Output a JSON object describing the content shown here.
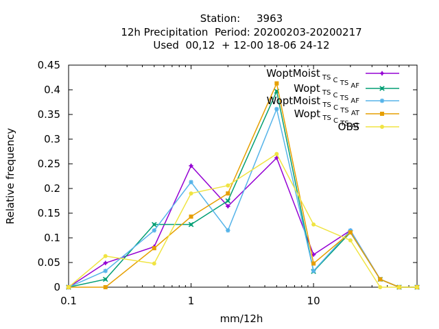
{
  "chart_data": {
    "type": "line",
    "title_lines": [
      "Station:     3963",
      "12h Precipitation  Period: 20200203-20200217",
      "Used  00,12  + 12-00 18-06 24-12"
    ],
    "xlabel": "mm/12h",
    "ylabel": "Relative frequency",
    "xscale": "log",
    "xlim": [
      0.1,
      70
    ],
    "ylim": [
      0,
      0.45
    ],
    "xticks": [
      {
        "v": 0.1,
        "label": "0.1"
      },
      {
        "v": 1,
        "label": "1"
      },
      {
        "v": 10,
        "label": "10"
      }
    ],
    "yticks": [
      {
        "v": 0,
        "label": "0"
      },
      {
        "v": 0.05,
        "label": "0.05"
      },
      {
        "v": 0.1,
        "label": "0.1"
      },
      {
        "v": 0.15,
        "label": "0.15"
      },
      {
        "v": 0.2,
        "label": "0.2"
      },
      {
        "v": 0.25,
        "label": "0.25"
      },
      {
        "v": 0.3,
        "label": "0.3"
      },
      {
        "v": 0.35,
        "label": "0.35"
      },
      {
        "v": 0.4,
        "label": "0.4"
      },
      {
        "v": 0.45,
        "label": "0.45"
      }
    ],
    "grid": false,
    "legend_position": "top-right",
    "x": [
      0.1,
      0.2,
      0.5,
      1,
      2,
      5,
      10,
      20,
      35,
      50,
      70
    ],
    "series": [
      {
        "name": "WoptMoist TSCTSAF",
        "label_main": "WoptMoist",
        "label_parts": [
          [
            "T",
            "S"
          ],
          [
            "C",
            ""
          ],
          [
            "T",
            "S"
          ],
          [
            "A",
            "F"
          ]
        ],
        "color": "#9400d3",
        "marker": "plus",
        "values": [
          0.0,
          0.049,
          0.082,
          0.246,
          0.164,
          0.262,
          0.066,
          0.115,
          0.016,
          0.0,
          0.0
        ]
      },
      {
        "name": "Wopt TSCTSAF",
        "label_main": "Wopt",
        "label_parts": [
          [
            "T",
            "S"
          ],
          [
            "C",
            ""
          ],
          [
            "T",
            "S"
          ],
          [
            "A",
            "F"
          ]
        ],
        "color": "#009e73",
        "marker": "x",
        "values": [
          0.0,
          0.016,
          0.127,
          0.127,
          0.175,
          0.397,
          0.032,
          0.111,
          0.016,
          0.0,
          0.0
        ]
      },
      {
        "name": "WoptMoist TSCTSAT",
        "label_main": "WoptMoist",
        "label_parts": [
          [
            "T",
            "S"
          ],
          [
            "C",
            ""
          ],
          [
            "T",
            "S"
          ],
          [
            "A",
            "T"
          ]
        ],
        "color": "#56b4e9",
        "marker": "star",
        "values": [
          0.0,
          0.033,
          0.115,
          0.213,
          0.115,
          0.361,
          0.033,
          0.115,
          0.016,
          0.0,
          0.0
        ]
      },
      {
        "name": "Wopt TSCTSAT",
        "label_main": "Wopt",
        "label_parts": [
          [
            "T",
            "S"
          ],
          [
            "C",
            ""
          ],
          [
            "T",
            "S"
          ],
          [
            "A",
            "T"
          ]
        ],
        "color": "#e69f00",
        "marker": "box",
        "values": [
          0.0,
          0.0,
          0.079,
          0.143,
          0.19,
          0.413,
          0.048,
          0.111,
          0.016,
          0.0,
          0.0
        ]
      },
      {
        "name": "OBS",
        "label_main": "OBS",
        "label_parts": [],
        "color": "#f0e442",
        "marker": "circle",
        "values": [
          0.0,
          0.063,
          0.048,
          0.19,
          0.206,
          0.27,
          0.127,
          0.095,
          0.0,
          0.0,
          0.0
        ]
      }
    ]
  }
}
